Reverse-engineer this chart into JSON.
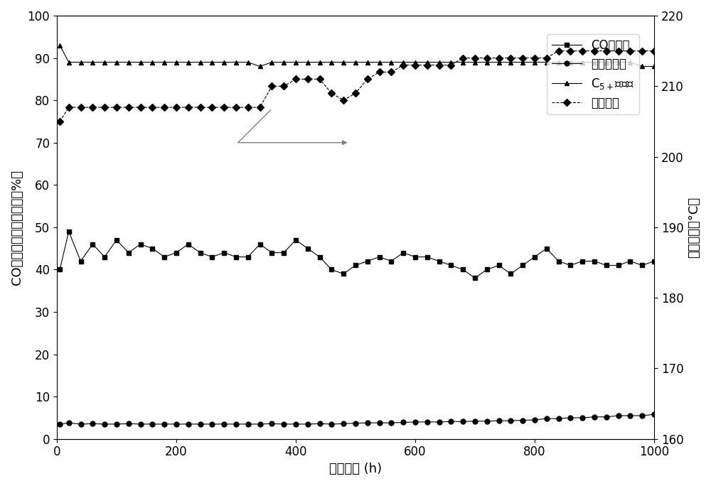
{
  "xlabel": "运行时间 (h)",
  "ylabel_left": "CO转化率或产物选择性（%）",
  "ylabel_right": "反应温度（°C）",
  "xlim": [
    0,
    1000
  ],
  "ylim_left": [
    0,
    100
  ],
  "ylim_right": [
    160,
    220
  ],
  "yticks_left": [
    0,
    10,
    20,
    30,
    40,
    50,
    60,
    70,
    80,
    90,
    100
  ],
  "yticks_right": [
    160,
    170,
    180,
    190,
    200,
    210,
    220
  ],
  "xticks": [
    0,
    200,
    400,
    600,
    800,
    1000
  ],
  "co_conversion_x": [
    5,
    20,
    40,
    60,
    80,
    100,
    120,
    140,
    160,
    180,
    200,
    220,
    240,
    260,
    280,
    300,
    320,
    340,
    360,
    380,
    400,
    420,
    440,
    460,
    480,
    500,
    520,
    540,
    560,
    580,
    600,
    620,
    640,
    660,
    680,
    700,
    720,
    740,
    760,
    780,
    800,
    820,
    840,
    860,
    880,
    900,
    920,
    940,
    960,
    980,
    1000
  ],
  "co_conversion_y": [
    40,
    49,
    42,
    46,
    43,
    47,
    44,
    46,
    45,
    43,
    44,
    46,
    44,
    43,
    44,
    43,
    43,
    46,
    44,
    44,
    47,
    45,
    43,
    40,
    39,
    41,
    42,
    43,
    42,
    44,
    43,
    43,
    42,
    41,
    40,
    38,
    40,
    41,
    39,
    41,
    43,
    45,
    42,
    41,
    42,
    42,
    41,
    41,
    42,
    41,
    42
  ],
  "methane_sel_x": [
    5,
    20,
    40,
    60,
    80,
    100,
    120,
    140,
    160,
    180,
    200,
    220,
    240,
    260,
    280,
    300,
    320,
    340,
    360,
    380,
    400,
    420,
    440,
    460,
    480,
    500,
    520,
    540,
    560,
    580,
    600,
    620,
    640,
    660,
    680,
    700,
    720,
    740,
    760,
    780,
    800,
    820,
    840,
    860,
    880,
    900,
    920,
    940,
    960,
    980,
    1000
  ],
  "methane_sel_y": [
    3.5,
    3.8,
    3.5,
    3.6,
    3.5,
    3.5,
    3.6,
    3.5,
    3.5,
    3.5,
    3.5,
    3.5,
    3.5,
    3.5,
    3.5,
    3.5,
    3.5,
    3.5,
    3.6,
    3.5,
    3.5,
    3.5,
    3.6,
    3.5,
    3.6,
    3.7,
    3.8,
    3.8,
    3.8,
    3.9,
    4.0,
    4.0,
    4.0,
    4.1,
    4.1,
    4.2,
    4.2,
    4.3,
    4.3,
    4.4,
    4.5,
    4.8,
    4.8,
    5.0,
    5.0,
    5.2,
    5.2,
    5.5,
    5.5,
    5.5,
    5.8
  ],
  "c5plus_sel_x": [
    5,
    20,
    40,
    60,
    80,
    100,
    120,
    140,
    160,
    180,
    200,
    220,
    240,
    260,
    280,
    300,
    320,
    340,
    360,
    380,
    400,
    420,
    440,
    460,
    480,
    500,
    520,
    540,
    560,
    580,
    600,
    620,
    640,
    660,
    680,
    700,
    720,
    740,
    760,
    780,
    800,
    820,
    840,
    860,
    880,
    900,
    920,
    940,
    960,
    980,
    1000
  ],
  "c5plus_sel_y": [
    93,
    89,
    89,
    89,
    89,
    89,
    89,
    89,
    89,
    89,
    89,
    89,
    89,
    89,
    89,
    89,
    89,
    88,
    89,
    89,
    89,
    89,
    89,
    89,
    89,
    89,
    89,
    89,
    89,
    89,
    89,
    89,
    89,
    89,
    89,
    89,
    89,
    89,
    89,
    89,
    89,
    89,
    89,
    89,
    89,
    89,
    89,
    89,
    89,
    88,
    88
  ],
  "temp_x": [
    5,
    20,
    40,
    60,
    80,
    100,
    120,
    140,
    160,
    180,
    200,
    220,
    240,
    260,
    280,
    300,
    320,
    340,
    360,
    380,
    400,
    420,
    440,
    460,
    480,
    500,
    520,
    540,
    560,
    580,
    600,
    620,
    640,
    660,
    680,
    700,
    720,
    740,
    760,
    780,
    800,
    820,
    840,
    860,
    880,
    900,
    920,
    940,
    960,
    980,
    1000
  ],
  "temp_y": [
    205,
    207,
    207,
    207,
    207,
    207,
    207,
    207,
    207,
    207,
    207,
    207,
    207,
    207,
    207,
    207,
    207,
    207,
    210,
    210,
    211,
    211,
    211,
    209,
    208,
    209,
    211,
    212,
    212,
    213,
    213,
    213,
    213,
    213,
    214,
    214,
    214,
    214,
    214,
    214,
    214,
    214,
    215,
    215,
    215,
    215,
    215,
    215,
    215,
    215,
    215
  ],
  "line_color": "black",
  "marker_co": "s",
  "marker_methane": "o",
  "marker_c5plus": "^",
  "marker_temp": "D",
  "markersize": 5,
  "legend_co": "CO转化率",
  "legend_methane": "甲烷选择性",
  "legend_c5plus": "C$_{5+}$选择性",
  "legend_temp": "反应温度",
  "fontsize": 13
}
